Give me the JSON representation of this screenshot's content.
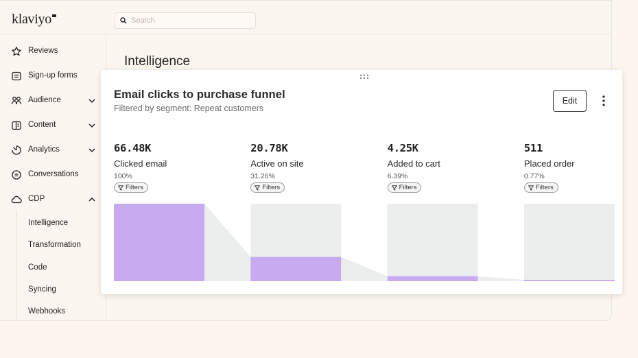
{
  "app": {
    "logo": "klaviyo",
    "search_placeholder": "Search"
  },
  "sidebar": {
    "items": [
      {
        "label": "Reviews",
        "icon": "star-icon"
      },
      {
        "label": "Sign-up forms",
        "icon": "form-icon"
      },
      {
        "label": "Audience",
        "icon": "audience-icon",
        "expanded": false
      },
      {
        "label": "Content",
        "icon": "content-icon",
        "expanded": false
      },
      {
        "label": "Analytics",
        "icon": "analytics-icon",
        "expanded": false
      },
      {
        "label": "Conversations",
        "icon": "conversations-icon"
      },
      {
        "label": "CDP",
        "icon": "cloud-icon",
        "expanded": true
      }
    ],
    "sub_items": [
      "Intelligence",
      "Transformation",
      "Code",
      "Syncing",
      "Webhooks"
    ]
  },
  "page": {
    "title": "Intelligence"
  },
  "card": {
    "title": "Email clicks to purchase funnel",
    "subtitle": "Filtered by segment: Repeat customers",
    "edit_label": "Edit",
    "filter_label": "Filters",
    "colors": {
      "bar": "#c8aaf0",
      "track": "#eceeee"
    }
  },
  "chart_data": {
    "type": "bar",
    "categories": [
      "Clicked email",
      "Active on site",
      "Added to cart",
      "Placed order"
    ],
    "values": [
      66480,
      20780,
      4250,
      511
    ],
    "display_values": [
      "66.48K",
      "20.78K",
      "4.25K",
      "511"
    ],
    "percentages": [
      "100%",
      "31.26%",
      "6.39%",
      "0.77%"
    ],
    "ylim": [
      0,
      66480
    ]
  }
}
